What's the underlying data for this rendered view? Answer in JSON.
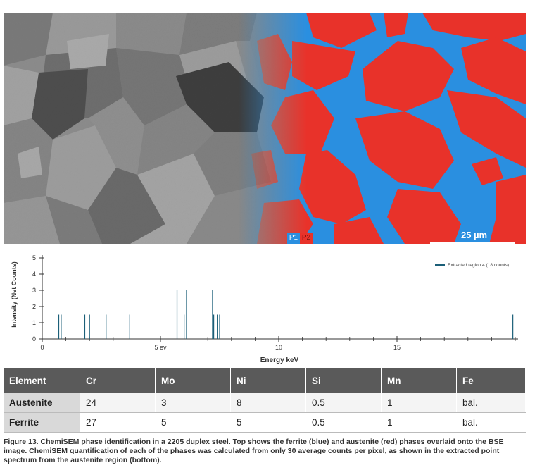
{
  "micrograph": {
    "scale_bar_label": "25 µm",
    "phase_labels": [
      "P1",
      "P2"
    ],
    "colors": {
      "ferrite": "#2a8fe0",
      "austenite": "#e8322a"
    }
  },
  "chart_data": {
    "type": "bar",
    "ylabel": "Intensity (Net Counts)",
    "xlabel": "Energy keV",
    "xlim": [
      0,
      20
    ],
    "ylim": [
      0,
      5
    ],
    "x_ticks": [
      {
        "value": 0,
        "label": "0"
      },
      {
        "value": 5,
        "label": "5 ev"
      },
      {
        "value": 10,
        "label": "10"
      },
      {
        "value": 15,
        "label": "15"
      }
    ],
    "y_ticks": [
      "0",
      "1",
      "2",
      "3",
      "4",
      "5"
    ],
    "series": [
      {
        "name": "Extracted region 4 (18 counts)",
        "color": "#1b5f78",
        "points": [
          {
            "x": 0.7,
            "y": 1.5
          },
          {
            "x": 0.8,
            "y": 1.5
          },
          {
            "x": 1.8,
            "y": 1.5
          },
          {
            "x": 2.0,
            "y": 1.5
          },
          {
            "x": 2.7,
            "y": 1.5
          },
          {
            "x": 3.7,
            "y": 1.5
          },
          {
            "x": 5.7,
            "y": 3.0
          },
          {
            "x": 6.0,
            "y": 1.5
          },
          {
            "x": 6.1,
            "y": 3.0
          },
          {
            "x": 7.2,
            "y": 3.0
          },
          {
            "x": 7.25,
            "y": 1.5
          },
          {
            "x": 7.4,
            "y": 1.5
          },
          {
            "x": 7.5,
            "y": 1.5
          },
          {
            "x": 19.9,
            "y": 1.5
          }
        ]
      }
    ]
  },
  "table": {
    "headers": [
      "Element",
      "Cr",
      "Mo",
      "Ni",
      "Si",
      "Mn",
      "Fe"
    ],
    "rows": [
      [
        "Austenite",
        "24",
        "3",
        "8",
        "0.5",
        "1",
        "bal."
      ],
      [
        "Ferrite",
        "27",
        "5",
        "5",
        "0.5",
        "1",
        "bal."
      ]
    ]
  },
  "caption": "Figure 13. ChemiSEM phase identification in a 2205 duplex steel. Top shows the ferrite (blue) and austenite (red) phases overlaid onto the BSE image. ChemiSEM quantification of each of the phases was calculated from only 30 average counts per pixel, as shown in the extracted point spectrum from the austenite region (bottom)."
}
